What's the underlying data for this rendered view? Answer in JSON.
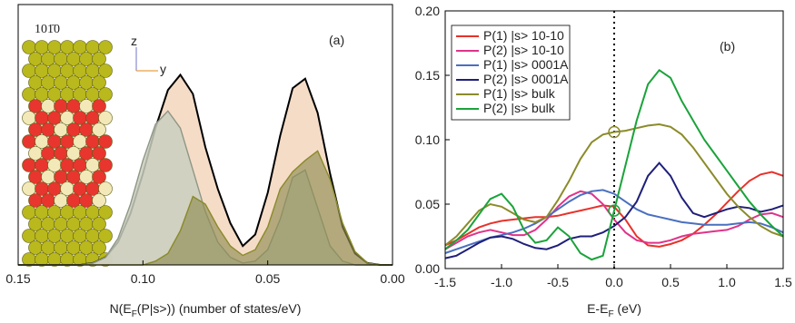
{
  "chart_data": [
    {
      "type": "area",
      "panel_label": "(a)",
      "structure_label": "101̄0",
      "axis_icon_labels": [
        "z",
        "y"
      ],
      "xlabel": [
        "N(E",
        "F",
        "(P|s>)) (number of states/eV)"
      ],
      "xlim": [
        0.15,
        0.0
      ],
      "xticks": [
        0.15,
        {
          "value": 0.1,
          "label": "0.10"
        },
        0.05,
        {
          "value": 0.0,
          "label": "0.00"
        }
      ],
      "ylim": [
        0,
        1.37
      ],
      "x": [
        0.15,
        0.145,
        0.14,
        0.135,
        0.13,
        0.125,
        0.12,
        0.115,
        0.11,
        0.105,
        0.1,
        0.095,
        0.09,
        0.085,
        0.08,
        0.075,
        0.07,
        0.065,
        0.06,
        0.055,
        0.05,
        0.045,
        0.04,
        0.035,
        0.03,
        0.025,
        0.02,
        0.015,
        0.01,
        0.005,
        0.0
      ],
      "series": [
        {
          "color": "#000000",
          "fill": "#f3d6bd",
          "values": [
            0,
            0,
            0,
            0,
            0,
            0,
            0.01,
            0.04,
            0.12,
            0.27,
            0.48,
            0.72,
            0.92,
            1.0,
            0.9,
            0.62,
            0.4,
            0.22,
            0.1,
            0.16,
            0.38,
            0.68,
            0.93,
            0.98,
            0.8,
            0.48,
            0.2,
            0.06,
            0.01,
            0,
            0
          ]
        },
        {
          "color": "#8e9684",
          "fill": "#c9cfc0",
          "values": [
            0,
            0,
            0,
            0,
            0,
            0,
            0.01,
            0.04,
            0.14,
            0.32,
            0.55,
            0.74,
            0.81,
            0.72,
            0.5,
            0.28,
            0.12,
            0.04,
            0.01,
            0.02,
            0.08,
            0.24,
            0.46,
            0.5,
            0.3,
            0.1,
            0.02,
            0,
            0,
            0,
            0
          ]
        },
        {
          "color": "#8a8a2a",
          "fill": "#8f8d55",
          "values": [
            0,
            0,
            0,
            0,
            0,
            0,
            0,
            0,
            0,
            0,
            0,
            0.02,
            0.06,
            0.18,
            0.36,
            0.32,
            0.2,
            0.1,
            0.05,
            0.08,
            0.2,
            0.4,
            0.49,
            0.55,
            0.6,
            0.45,
            0.22,
            0.07,
            0.01,
            0,
            0
          ]
        }
      ]
    },
    {
      "type": "line",
      "panel_label": "(b)",
      "xlabel": [
        "E-E",
        "F",
        " (eV)"
      ],
      "xlim": [
        -1.5,
        1.5
      ],
      "xticks": [
        -1.5,
        {
          "value": -1.0,
          "label": "-1.0"
        },
        -0.5,
        {
          "value": 0.0,
          "label": "0.0"
        },
        0.5,
        {
          "value": 1.0,
          "label": "1.0"
        },
        1.5
      ],
      "ylim": [
        0,
        0.2
      ],
      "yticks": [
        {
          "value": 0.0,
          "label": "0.00"
        },
        0.05,
        {
          "value": 0.1,
          "label": "0.10"
        },
        0.15,
        {
          "value": 0.2,
          "label": "0.20"
        }
      ],
      "vline": 0.0,
      "legend": "top-left",
      "x": [
        -1.5,
        -1.4,
        -1.3,
        -1.2,
        -1.1,
        -1.0,
        -0.9,
        -0.8,
        -0.7,
        -0.6,
        -0.5,
        -0.4,
        -0.3,
        -0.2,
        -0.1,
        0.0,
        0.1,
        0.2,
        0.3,
        0.4,
        0.5,
        0.6,
        0.7,
        0.8,
        0.9,
        1.0,
        1.1,
        1.2,
        1.3,
        1.4,
        1.5
      ],
      "markers": [
        {
          "series": 4,
          "index": 15
        },
        {
          "series": 5,
          "index": 15
        }
      ],
      "series": [
        {
          "name": "P(1) |s> 10-10",
          "color": "#e8312a",
          "values": [
            0.018,
            0.022,
            0.027,
            0.032,
            0.035,
            0.037,
            0.038,
            0.039,
            0.04,
            0.04,
            0.041,
            0.043,
            0.045,
            0.047,
            0.049,
            0.048,
            0.038,
            0.025,
            0.018,
            0.017,
            0.019,
            0.022,
            0.027,
            0.034,
            0.042,
            0.051,
            0.06,
            0.068,
            0.073,
            0.075,
            0.072
          ]
        },
        {
          "name": "P(2) |s> 10-10",
          "color": "#e0338a",
          "values": [
            0.015,
            0.02,
            0.025,
            0.028,
            0.03,
            0.028,
            0.026,
            0.026,
            0.03,
            0.038,
            0.048,
            0.056,
            0.06,
            0.058,
            0.05,
            0.038,
            0.028,
            0.022,
            0.02,
            0.02,
            0.022,
            0.025,
            0.027,
            0.028,
            0.029,
            0.03,
            0.033,
            0.038,
            0.042,
            0.043,
            0.04
          ]
        },
        {
          "name": "P(1) |s> 0001A",
          "color": "#4a6fc0",
          "values": [
            0.012,
            0.015,
            0.018,
            0.021,
            0.024,
            0.026,
            0.028,
            0.031,
            0.035,
            0.04,
            0.046,
            0.052,
            0.057,
            0.06,
            0.061,
            0.058,
            0.052,
            0.046,
            0.042,
            0.04,
            0.038,
            0.036,
            0.035,
            0.034,
            0.034,
            0.034,
            0.035,
            0.036,
            0.035,
            0.032,
            0.028
          ]
        },
        {
          "name": "P(2) |s> 0001A",
          "color": "#1f1f7a",
          "values": [
            0.008,
            0.01,
            0.015,
            0.02,
            0.024,
            0.025,
            0.023,
            0.019,
            0.016,
            0.015,
            0.018,
            0.023,
            0.025,
            0.025,
            0.028,
            0.033,
            0.04,
            0.052,
            0.072,
            0.082,
            0.072,
            0.055,
            0.043,
            0.04,
            0.043,
            0.046,
            0.048,
            0.047,
            0.044,
            0.046,
            0.049
          ]
        },
        {
          "name": "P(1) |s> bulk",
          "color": "#8b8b2a",
          "values": [
            0.018,
            0.025,
            0.035,
            0.045,
            0.05,
            0.048,
            0.043,
            0.038,
            0.036,
            0.04,
            0.053,
            0.068,
            0.085,
            0.098,
            0.104,
            0.106,
            0.107,
            0.109,
            0.111,
            0.112,
            0.11,
            0.104,
            0.094,
            0.082,
            0.07,
            0.058,
            0.048,
            0.04,
            0.033,
            0.028,
            0.025
          ]
        },
        {
          "name": "P(2) |s> bulk",
          "color": "#1aa33a",
          "values": [
            0.015,
            0.022,
            0.03,
            0.042,
            0.054,
            0.058,
            0.048,
            0.03,
            0.02,
            0.022,
            0.032,
            0.025,
            0.012,
            0.007,
            0.01,
            0.045,
            0.08,
            0.115,
            0.143,
            0.154,
            0.148,
            0.13,
            0.115,
            0.1,
            0.088,
            0.076,
            0.064,
            0.052,
            0.042,
            0.033,
            0.025
          ]
        }
      ]
    }
  ]
}
